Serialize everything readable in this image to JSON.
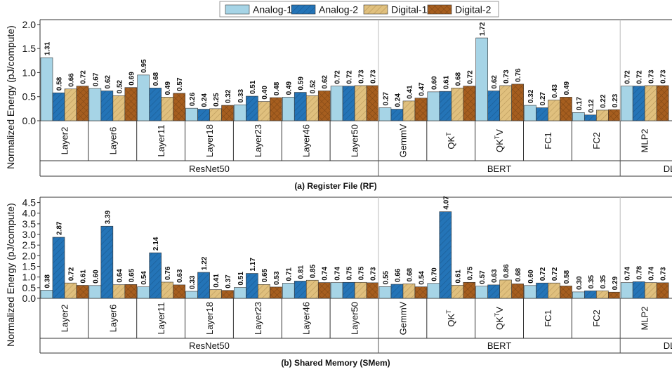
{
  "legend": [
    {
      "name": "Analog-1",
      "color": "#a6d4e6",
      "hatch": "none"
    },
    {
      "name": "Analog-2",
      "color": "#2474b7",
      "hatch": "diag"
    },
    {
      "name": "Digital-1",
      "color": "#e0c07e",
      "hatch": "diag"
    },
    {
      "name": "Digital-2",
      "color": "#a65e1f",
      "hatch": "cross"
    }
  ],
  "chart_data": [
    {
      "type": "bar",
      "title": "(a) Register File (RF)",
      "ylabel": "Normalized Energy (pJ/compute)",
      "ylim": [
        0,
        2.1
      ],
      "yticks": [
        "0.0",
        "0.5",
        "1.0",
        "1.5",
        "2.0"
      ],
      "ytick_values": [
        0,
        0.5,
        1.0,
        1.5,
        2.0
      ],
      "groups": [
        {
          "label": "ResNet50",
          "categories": [
            "Layer2",
            "Layer6",
            "Layer11",
            "Layer18",
            "Layer23",
            "Layer46",
            "Layer50"
          ]
        },
        {
          "label": "BERT",
          "categories": [
            "GemmV",
            "QK^T",
            "QK^TV",
            "FC1",
            "FC2"
          ]
        },
        {
          "label": "DLRM",
          "categories": [
            "MLP2"
          ]
        }
      ],
      "series": [
        {
          "name": "Analog-1",
          "values": [
            1.31,
            0.67,
            0.95,
            0.26,
            0.33,
            0.49,
            0.72,
            0.27,
            0.6,
            1.72,
            0.32,
            0.17,
            0.72
          ]
        },
        {
          "name": "Analog-2",
          "values": [
            0.58,
            0.62,
            0.68,
            0.24,
            0.51,
            0.59,
            0.72,
            0.24,
            0.61,
            0.62,
            0.27,
            0.12,
            0.72
          ]
        },
        {
          "name": "Digital-1",
          "values": [
            0.66,
            0.52,
            0.49,
            0.25,
            0.4,
            0.52,
            0.73,
            0.41,
            0.68,
            0.73,
            0.43,
            0.22,
            0.73
          ]
        },
        {
          "name": "Digital-2",
          "values": [
            0.72,
            0.69,
            0.57,
            0.32,
            0.48,
            0.62,
            0.73,
            0.47,
            0.72,
            0.76,
            0.49,
            0.23,
            0.73
          ]
        }
      ]
    },
    {
      "type": "bar",
      "title": "(b) Shared Memory (SMem)",
      "ylabel": "Normalized Energy (pJ/compute)",
      "ylim": [
        0,
        4.75
      ],
      "yticks": [
        "0.0",
        "0.5",
        "1.0",
        "1.5",
        "2.0",
        "2.5",
        "3.0",
        "3.5",
        "4.0",
        "4.5"
      ],
      "ytick_values": [
        0,
        0.5,
        1.0,
        1.5,
        2.0,
        2.5,
        3.0,
        3.5,
        4.0,
        4.5
      ],
      "groups": [
        {
          "label": "ResNet50",
          "categories": [
            "Layer2",
            "Layer6",
            "Layer11",
            "Layer18",
            "Layer23",
            "Layer46",
            "Layer50"
          ]
        },
        {
          "label": "BERT",
          "categories": [
            "GemmV",
            "QK^T",
            "QK^TV",
            "FC1",
            "FC2"
          ]
        },
        {
          "label": "DLRM",
          "categories": [
            "MLP2"
          ]
        }
      ],
      "series": [
        {
          "name": "Analog-1",
          "values": [
            0.38,
            0.6,
            0.54,
            0.33,
            0.51,
            0.71,
            0.74,
            0.55,
            0.7,
            0.57,
            0.6,
            0.3,
            0.74
          ]
        },
        {
          "name": "Analog-2",
          "values": [
            2.87,
            3.39,
            2.14,
            1.22,
            1.17,
            0.81,
            0.75,
            0.66,
            4.07,
            0.63,
            0.72,
            0.35,
            0.78
          ]
        },
        {
          "name": "Digital-1",
          "values": [
            0.72,
            0.64,
            0.76,
            0.41,
            0.65,
            0.85,
            0.75,
            0.68,
            0.61,
            0.86,
            0.72,
            0.35,
            0.74
          ]
        },
        {
          "name": "Digital-2",
          "values": [
            0.61,
            0.65,
            0.63,
            0.37,
            0.53,
            0.74,
            0.73,
            0.54,
            0.75,
            0.68,
            0.58,
            0.29,
            0.73
          ]
        }
      ]
    }
  ]
}
